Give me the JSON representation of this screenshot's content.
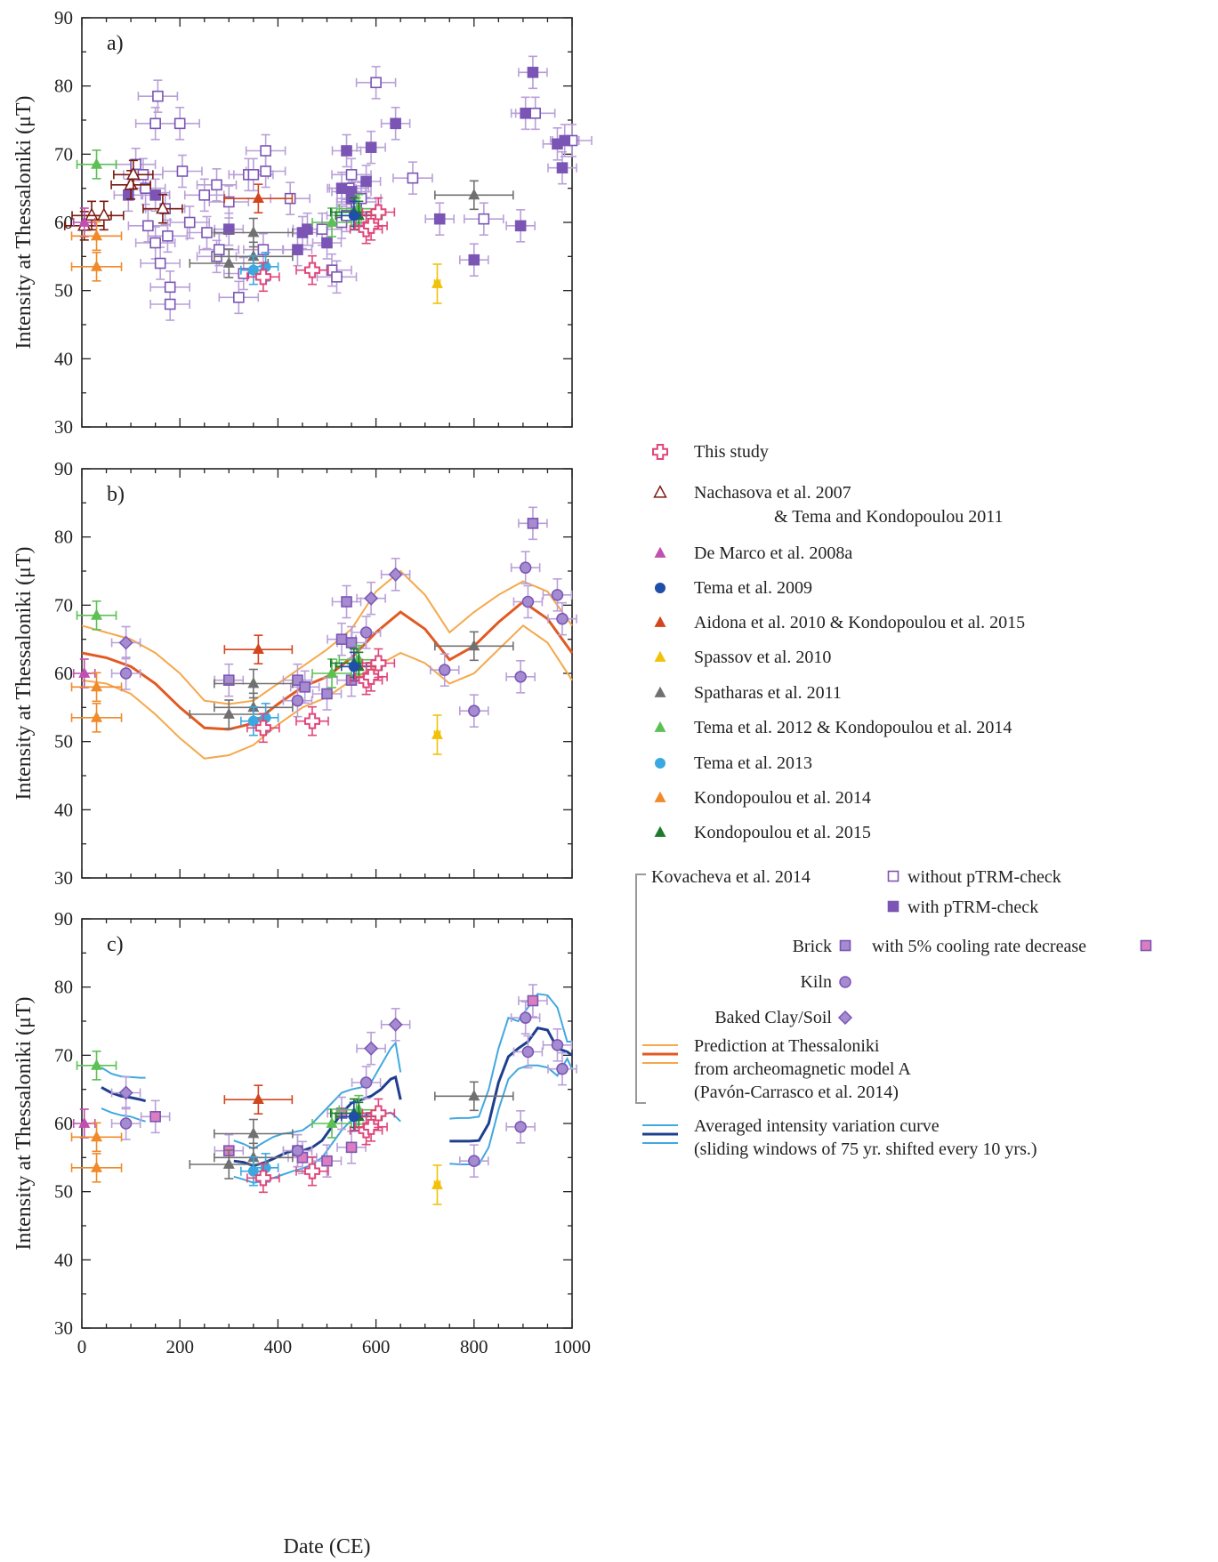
{
  "chart_data": {
    "type": "scatter",
    "xlabel": "Date (CE)",
    "ylabel": "Intensity at Thessaloniki (μT)",
    "xlim": [
      0,
      1000
    ],
    "ylim": [
      30,
      90
    ],
    "xticks": [
      0,
      200,
      400,
      600,
      800,
      1000
    ],
    "yticks": [
      30,
      40,
      50,
      60,
      70,
      80,
      90
    ],
    "legend_placement": "right",
    "colors": {
      "this_study": "#e0457a",
      "nachasova": "#7a1a10",
      "demarco": "#c04fb0",
      "tema2009": "#1f4fa8",
      "aidona": "#d2461f",
      "spassov": "#f2c20a",
      "spatharas": "#707070",
      "tema2012": "#5cc054",
      "tema2013": "#3ba8e0",
      "kondo2014": "#f08a2a",
      "kondo2015": "#1f7a2a",
      "kovacheva": "#7b55b5",
      "kovacheva_err": "#b9a0d8",
      "cooling_pink": "#d97fbf",
      "model": "#e25a22",
      "model_env": "#f5a84c",
      "avg": "#1e3f8f",
      "avg_env": "#42a8e0"
    },
    "panels": [
      {
        "label": "a)",
        "kov_open": [
          [
            110,
            68.5
          ],
          [
            125,
            67
          ],
          [
            130,
            65
          ],
          [
            135,
            59.5
          ],
          [
            150,
            74.5
          ],
          [
            155,
            78.5
          ],
          [
            150,
            57
          ],
          [
            160,
            54
          ],
          [
            170,
            62
          ],
          [
            175,
            58
          ],
          [
            180,
            50.5
          ],
          [
            180,
            48
          ],
          [
            200,
            74.5
          ],
          [
            205,
            67.5
          ],
          [
            220,
            60
          ],
          [
            250,
            64
          ],
          [
            255,
            58.5
          ],
          [
            275,
            55
          ],
          [
            275,
            65.5
          ],
          [
            280,
            56
          ],
          [
            300,
            63
          ],
          [
            320,
            49
          ],
          [
            330,
            52.5
          ],
          [
            340,
            67
          ],
          [
            350,
            67
          ],
          [
            370,
            56
          ],
          [
            375,
            70.5
          ],
          [
            375,
            67.5
          ],
          [
            425,
            63.5
          ],
          [
            490,
            59
          ],
          [
            510,
            53
          ],
          [
            520,
            52
          ],
          [
            530,
            60
          ],
          [
            540,
            61
          ],
          [
            545,
            65
          ],
          [
            550,
            67
          ],
          [
            550,
            64.5
          ],
          [
            560,
            62
          ],
          [
            560,
            63
          ],
          [
            570,
            63.5
          ],
          [
            600,
            80.5
          ],
          [
            675,
            66.5
          ],
          [
            820,
            60.5
          ],
          [
            925,
            76
          ],
          [
            1000,
            72
          ]
        ],
        "kov_filled": [
          [
            95,
            64
          ],
          [
            150,
            64
          ],
          [
            300,
            59
          ],
          [
            440,
            56
          ],
          [
            450,
            58.5
          ],
          [
            460,
            59
          ],
          [
            500,
            57
          ],
          [
            530,
            65
          ],
          [
            540,
            70.5
          ],
          [
            550,
            63.5
          ],
          [
            550,
            64.5
          ],
          [
            580,
            66
          ],
          [
            590,
            71
          ],
          [
            640,
            74.5
          ],
          [
            730,
            60.5
          ],
          [
            800,
            54.5
          ],
          [
            895,
            59.5
          ],
          [
            905,
            76
          ],
          [
            920,
            82
          ],
          [
            970,
            71.5
          ],
          [
            980,
            68
          ],
          [
            985,
            72
          ]
        ]
      },
      {
        "label": "b)",
        "bricks": [
          [
            300,
            59
          ],
          [
            440,
            59
          ],
          [
            455,
            58
          ],
          [
            500,
            57
          ],
          [
            530,
            65
          ],
          [
            540,
            70.5
          ],
          [
            550,
            64.5
          ],
          [
            550,
            59
          ],
          [
            920,
            82
          ]
        ],
        "kilns": [
          [
            90,
            60
          ],
          [
            440,
            56
          ],
          [
            580,
            66
          ],
          [
            740,
            60.5
          ],
          [
            800,
            54.5
          ],
          [
            895,
            59.5
          ],
          [
            905,
            75.5
          ],
          [
            910,
            70.5
          ],
          [
            970,
            71.5
          ],
          [
            980,
            68
          ]
        ],
        "clays": [
          [
            90,
            64.5
          ],
          [
            590,
            71
          ],
          [
            640,
            74.5
          ]
        ],
        "model_years": [
          0,
          50,
          100,
          150,
          200,
          250,
          300,
          350,
          400,
          450,
          500,
          550,
          600,
          650,
          700,
          750,
          800,
          850,
          900,
          950,
          1000
        ],
        "model_mean": [
          63,
          62.3,
          61,
          58.5,
          55,
          52,
          51.8,
          52.7,
          55.5,
          58,
          59.5,
          62.3,
          66,
          69,
          66.5,
          62,
          64,
          67.5,
          70.5,
          68,
          63
        ],
        "model_upper": [
          67,
          66,
          65,
          63,
          60,
          56,
          55.5,
          56,
          58.5,
          61,
          63.5,
          66.5,
          72,
          75,
          71.5,
          66,
          69,
          71.5,
          73.5,
          72,
          67
        ],
        "model_lower": [
          59,
          58.5,
          57,
          54,
          50.5,
          47.5,
          48,
          49.5,
          52.5,
          55,
          56.5,
          59,
          61,
          63,
          61.5,
          58.5,
          60,
          63.5,
          67,
          64.5,
          59
        ]
      },
      {
        "label": "c)",
        "bricks": [
          [
            150,
            61
          ],
          [
            300,
            56
          ],
          [
            440,
            56
          ],
          [
            450,
            55
          ],
          [
            500,
            54.5
          ],
          [
            530,
            61.5
          ],
          [
            550,
            56.5
          ],
          [
            920,
            78
          ]
        ],
        "kilns": [
          [
            90,
            60
          ],
          [
            440,
            56
          ],
          [
            580,
            66
          ],
          [
            800,
            54.5
          ],
          [
            895,
            59.5
          ],
          [
            905,
            75.5
          ],
          [
            910,
            70.5
          ],
          [
            970,
            71.5
          ],
          [
            980,
            68
          ]
        ],
        "clays": [
          [
            90,
            64.5
          ],
          [
            590,
            71
          ],
          [
            640,
            74.5
          ]
        ],
        "avg_segments": [
          {
            "years": [
              40,
              60,
              80,
              100,
              120,
              130
            ],
            "mean": [
              65.3,
              64.5,
              64,
              63.8,
              63.5,
              63.3
            ],
            "upper": [
              68.2,
              67.3,
              66.9,
              66.8,
              66.7,
              66.7
            ],
            "lower": [
              62.2,
              61.6,
              61.2,
              61,
              60.5,
              60.3
            ]
          },
          {
            "years": [
              310,
              330,
              350,
              370,
              390,
              410,
              430,
              450,
              470,
              490,
              510,
              530,
              550,
              570,
              590,
              610,
              630,
              640,
              650
            ],
            "mean": [
              54.5,
              54.3,
              53.8,
              54.2,
              54.8,
              55.5,
              56,
              56,
              56.5,
              57.5,
              59.5,
              61.5,
              63,
              63.5,
              64,
              65,
              66.5,
              66.8,
              63.5
            ],
            "upper": [
              57.5,
              57,
              56.3,
              57.2,
              58,
              58.5,
              58.7,
              59,
              60,
              61.5,
              63,
              64.5,
              65,
              65.3,
              66,
              68.5,
              71,
              71.8,
              67.5
            ],
            "lower": [
              52.2,
              51.8,
              51.3,
              51.5,
              52,
              52.5,
              53,
              53.4,
              54,
              55,
              57,
              59,
              60.5,
              61,
              61.5,
              61.3,
              61.6,
              61,
              60.3
            ]
          },
          {
            "years": [
              750,
              770,
              790,
              810,
              830,
              850,
              870,
              890,
              910,
              930,
              950,
              970,
              990,
              1000
            ],
            "mean": [
              57.4,
              57.4,
              57.4,
              57.5,
              60,
              66,
              69.8,
              71,
              72,
              74,
              73.7,
              71,
              70.5,
              70
            ],
            "upper": [
              60.7,
              60.8,
              60.8,
              61,
              65,
              71,
              75.5,
              75,
              77,
              79,
              78.8,
              77,
              72,
              72
            ],
            "lower": [
              54.1,
              54,
              54,
              54,
              56.5,
              62,
              66.5,
              68,
              68.5,
              68.5,
              68.2,
              67,
              69.5,
              68
            ]
          }
        ]
      }
    ],
    "common": {
      "this_study": [
        [
          370,
          52
        ],
        [
          470,
          53
        ],
        [
          580,
          59
        ],
        [
          590,
          59.5
        ],
        [
          605,
          61.5
        ]
      ],
      "nachasova": [
        [
          5,
          59.5
        ],
        [
          20,
          61
        ],
        [
          45,
          61
        ],
        [
          100,
          65.5
        ],
        [
          105,
          67
        ],
        [
          165,
          62
        ]
      ],
      "demarco": [
        [
          5,
          60
        ]
      ],
      "tema2009": [
        [
          555,
          61
        ]
      ],
      "aidona": [
        [
          360,
          63.5
        ]
      ],
      "spassov": [
        [
          725,
          51
        ]
      ],
      "spatharas": [
        [
          300,
          54
        ],
        [
          350,
          55
        ],
        [
          350,
          58.5
        ],
        [
          800,
          64
        ]
      ],
      "tema2012": [
        [
          30,
          68.5
        ],
        [
          510,
          60
        ],
        [
          560,
          61.5
        ],
        [
          565,
          62
        ]
      ],
      "tema2013": [
        [
          350,
          53
        ],
        [
          375,
          53.5
        ]
      ],
      "kondo2014": [
        [
          30,
          58
        ],
        [
          30,
          53.5
        ]
      ],
      "kondo2015": [
        [
          555,
          61.5
        ],
        [
          565,
          61
        ]
      ]
    }
  },
  "legend": {
    "this_study": "This study",
    "nachasova_1": "Nachasova et al. 2007",
    "nachasova_2": "& Tema and Kondopoulou 2011",
    "demarco": "De Marco et al. 2008a",
    "tema2009": "Tema et al. 2009",
    "aidona": "Aidona et al. 2010 & Kondopoulou et al. 2015",
    "spassov": "Spassov et al. 2010",
    "spatharas": "Spatharas et al. 2011",
    "tema2012": "Tema et al. 2012 & Kondopoulou et al. 2014",
    "tema2013": "Tema et al. 2013",
    "kondo2014": "Kondopoulou et al. 2014",
    "kondo2015": "Kondopoulou et al. 2015",
    "kovacheva": "Kovacheva et al. 2014",
    "without_ptrm": "without pTRM-check",
    "with_ptrm": "with pTRM-check",
    "brick": "Brick",
    "cooling": "with 5% cooling rate decrease",
    "kiln": "Kiln",
    "baked_clay": "Baked Clay/Soil",
    "model_1": "Prediction at Thessaloniki",
    "model_2": "from archeomagnetic model A",
    "model_3": "(Pavón-Carrasco et al. 2014)",
    "avg_1": "Averaged intensity variation curve",
    "avg_2": "(sliding windows of 75 yr. shifted every 10 yrs.)"
  }
}
